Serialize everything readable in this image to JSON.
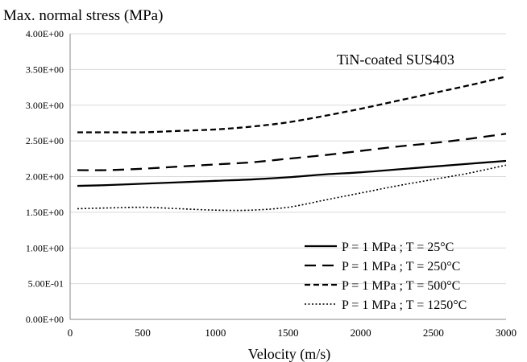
{
  "chart_data": {
    "type": "line",
    "title": "Max. normal stress (MPa)",
    "xlabel": "Velocity (m/s)",
    "ylabel": "",
    "annotation": "TiN-coated SUS403",
    "xlim": [
      0,
      3000
    ],
    "ylim": [
      0,
      4
    ],
    "xticks": [
      "0",
      "500",
      "1000",
      "1500",
      "2000",
      "2500",
      "3000"
    ],
    "yticks": [
      "0.00E+00",
      "5.00E-01",
      "1.00E+00",
      "1.50E+00",
      "2.00E+00",
      "2.50E+00",
      "3.00E+00",
      "3.50E+00",
      "4.00E+00"
    ],
    "grid": true,
    "legend_position": "bottom-right",
    "x": [
      50,
      250,
      500,
      750,
      1000,
      1250,
      1500,
      1750,
      2000,
      2250,
      2500,
      2750,
      3000
    ],
    "series": [
      {
        "name": "P = 1 MPa ; T = 25°C",
        "style": "solid",
        "values": [
          1.87,
          1.88,
          1.9,
          1.92,
          1.94,
          1.96,
          1.99,
          2.03,
          2.06,
          2.1,
          2.14,
          2.18,
          2.22
        ]
      },
      {
        "name": "P = 1 MPa ; T = 250°C",
        "style": "long-dash",
        "values": [
          2.09,
          2.09,
          2.11,
          2.14,
          2.17,
          2.2,
          2.25,
          2.3,
          2.36,
          2.42,
          2.47,
          2.53,
          2.6
        ]
      },
      {
        "name": "P = 1 MPa ; T = 500°C",
        "style": "short-dash",
        "values": [
          2.62,
          2.62,
          2.62,
          2.64,
          2.66,
          2.7,
          2.76,
          2.85,
          2.95,
          3.06,
          3.17,
          3.28,
          3.4
        ]
      },
      {
        "name": "P = 1 MPa ; T = 1250°C",
        "style": "dotted",
        "values": [
          1.55,
          1.56,
          1.57,
          1.55,
          1.53,
          1.53,
          1.57,
          1.67,
          1.77,
          1.87,
          1.96,
          2.05,
          2.16
        ]
      }
    ],
    "line_color": "#000000",
    "grid_color": "#d9d9d9",
    "axis_color": "#888888"
  }
}
